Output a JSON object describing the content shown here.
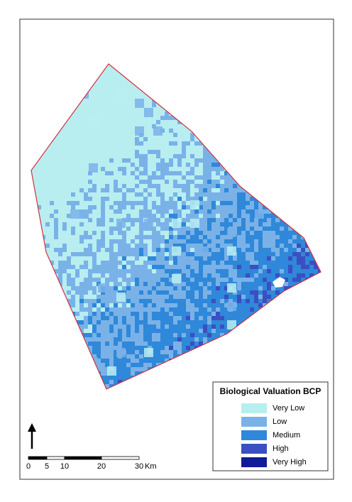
{
  "legend": {
    "title": "Biological Valuation BCP",
    "items": [
      {
        "label": "Very Low",
        "color": "#b8eef0"
      },
      {
        "label": "Low",
        "color": "#7ab2e8"
      },
      {
        "label": "Medium",
        "color": "#2f88d9"
      },
      {
        "label": "High",
        "color": "#3a4fc2"
      },
      {
        "label": "Very High",
        "color": "#0f1c96"
      }
    ]
  },
  "scale_bar": {
    "labels": [
      "0",
      "5",
      "10",
      "20",
      "30"
    ],
    "unit": "Km"
  }
}
